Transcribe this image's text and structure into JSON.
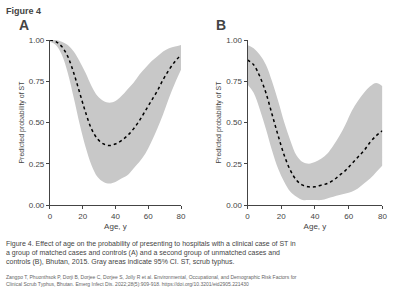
{
  "title": "Figure 4",
  "caption": [
    "Figure 4. Effect of age on the probability of presenting to hospitals with a clinical case of ST in",
    "a group of matched cases and controls (A) and a second group of unmatched cases and",
    "controls (B), Bhutan, 2015. Gray areas indicate 95% CI. ST, scrub typhus."
  ],
  "citation": "Zangpo T, Phuonthsok P, Dorji B, Dorjee C, Dorjee S, Jolly R et al. Environmental, Occupational, and Demographic Risk Factors for Clinical Scrub Typhus, Bhutan. Emerg Infect Dis. 2022;28(5):909-918. https://doi.org/10.3201/eid2905.221430",
  "chart_data": [
    {
      "type": "line",
      "title": "A",
      "xlabel": "Age, y",
      "ylabel": "Predicted probability of ST",
      "x": [
        0,
        3.6363636363636362,
        7.2727272727272725,
        10.909090909090908,
        14.545454545454545,
        18.18181818181818,
        21.818181818181817,
        25.454545454545453,
        29.09090909090909,
        32.72727272727273,
        36.36363636363636,
        40,
        43.63636363636363,
        47.27272727272727,
        50.90909090909091,
        54.54545454545455,
        58.18181818181818,
        61.81818181818181,
        65.45454545454545,
        69.0909090909091,
        72.72727272727273,
        76.36363636363636,
        80
      ],
      "xlim": [
        0,
        80
      ],
      "xticks": [
        0,
        20,
        40,
        60,
        80
      ],
      "ylim": [
        0,
        1.0
      ],
      "yticks": [
        {
          "value": 0,
          "label": "0.00"
        },
        0.25,
        {
          "value": 0.5,
          "label": "0.50"
        },
        0.75,
        {
          "value": 1.0,
          "label": "1.00"
        }
      ],
      "grid": false,
      "series": [
        {
          "type": "band",
          "color": "#c8c8c8",
          "upper": [
            1.0,
            1.0,
            0.99,
            0.97,
            0.93,
            0.87,
            0.8,
            0.72,
            0.66,
            0.63,
            0.62,
            0.63,
            0.66,
            0.7,
            0.74,
            0.79,
            0.83,
            0.87,
            0.9,
            0.93,
            0.95,
            0.96,
            0.97
          ],
          "lower": [
            0.99,
            0.97,
            0.91,
            0.8,
            0.65,
            0.49,
            0.35,
            0.24,
            0.17,
            0.14,
            0.13,
            0.14,
            0.16,
            0.18,
            0.22,
            0.26,
            0.31,
            0.38,
            0.46,
            0.55,
            0.65,
            0.74,
            0.82
          ]
        },
        {
          "type": "line",
          "color": "#000000",
          "line_style": "dotted",
          "values": [
            1.0,
            0.99,
            0.96,
            0.9,
            0.8,
            0.68,
            0.56,
            0.46,
            0.4,
            0.37,
            0.36,
            0.37,
            0.39,
            0.42,
            0.46,
            0.51,
            0.57,
            0.63,
            0.69,
            0.76,
            0.82,
            0.87,
            0.91
          ]
        }
      ]
    },
    {
      "type": "line",
      "title": "B",
      "xlabel": "Age, y",
      "ylabel": "Predicted probability of ST",
      "x": [
        0,
        3.6363636363636362,
        7.2727272727272725,
        10.909090909090908,
        14.545454545454545,
        18.18181818181818,
        21.818181818181817,
        25.454545454545453,
        29.09090909090909,
        32.72727272727273,
        36.36363636363636,
        40,
        43.63636363636363,
        47.27272727272727,
        50.90909090909091,
        54.54545454545455,
        58.18181818181818,
        61.81818181818181,
        65.45454545454545,
        69.0909090909091,
        72.72727272727273,
        76.36363636363636,
        80
      ],
      "xlim": [
        0,
        80
      ],
      "xticks": [
        0,
        20,
        40,
        60,
        80
      ],
      "ylim": [
        0,
        1.0
      ],
      "yticks": [
        {
          "value": 0,
          "label": "0.00"
        },
        0.25,
        {
          "value": 0.5,
          "label": "0.50"
        },
        0.75,
        {
          "value": 1.0,
          "label": "1.00"
        }
      ],
      "grid": false,
      "series": [
        {
          "type": "band",
          "color": "#c8c8c8",
          "upper": [
            0.97,
            0.95,
            0.91,
            0.85,
            0.75,
            0.63,
            0.5,
            0.39,
            0.3,
            0.26,
            0.25,
            0.26,
            0.28,
            0.31,
            0.36,
            0.42,
            0.49,
            0.57,
            0.63,
            0.68,
            0.72,
            0.74,
            0.72
          ],
          "lower": [
            0.73,
            0.68,
            0.58,
            0.46,
            0.33,
            0.22,
            0.14,
            0.08,
            0.05,
            0.03,
            0.03,
            0.03,
            0.03,
            0.04,
            0.05,
            0.06,
            0.07,
            0.08,
            0.1,
            0.13,
            0.16,
            0.2,
            0.24
          ]
        },
        {
          "type": "line",
          "color": "#000000",
          "line_style": "dotted",
          "values": [
            0.88,
            0.85,
            0.78,
            0.68,
            0.55,
            0.42,
            0.3,
            0.21,
            0.15,
            0.12,
            0.11,
            0.11,
            0.12,
            0.13,
            0.15,
            0.18,
            0.21,
            0.25,
            0.29,
            0.33,
            0.38,
            0.42,
            0.45
          ]
        }
      ]
    }
  ]
}
